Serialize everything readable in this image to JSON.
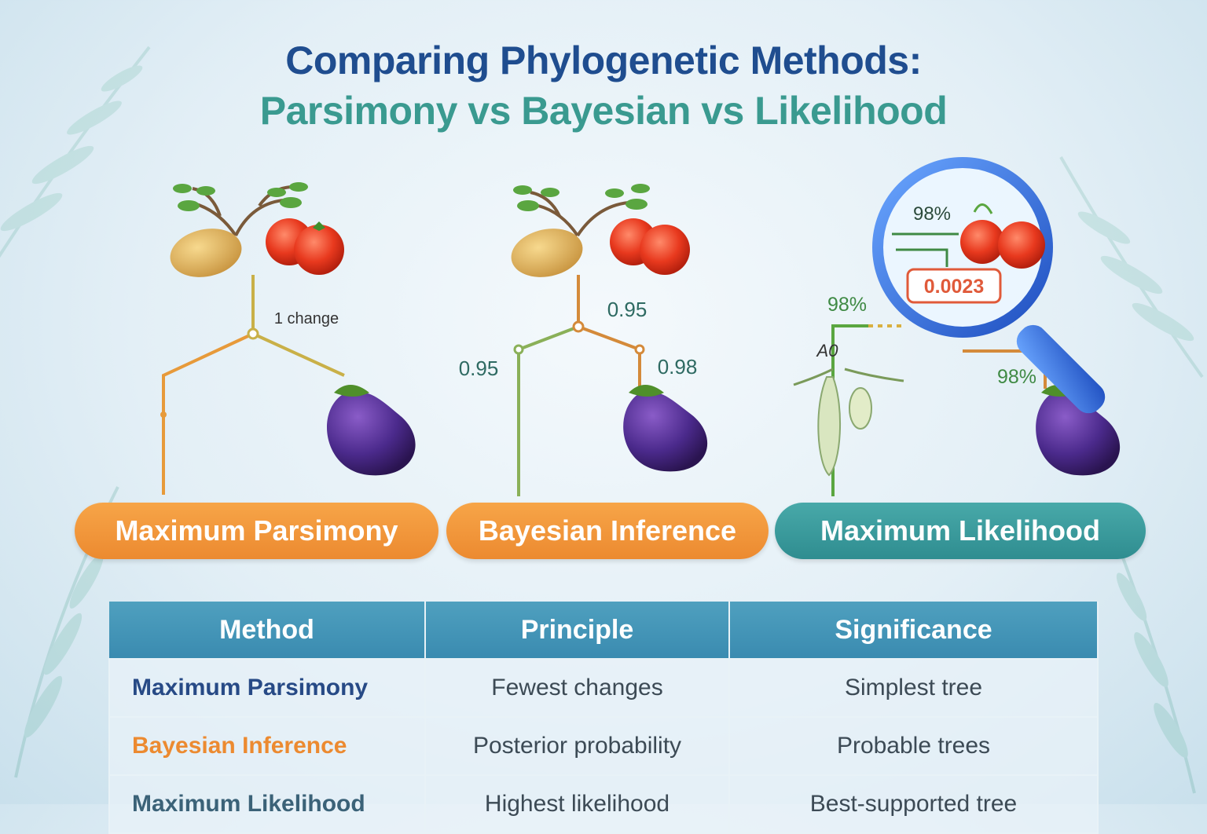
{
  "title": {
    "line1": "Comparing Phylogenetic Methods:",
    "line2": "Parsimony vs Bayesian vs Likelihood"
  },
  "panels": {
    "parsimony": {
      "label": "Maximum Parsimony",
      "change_label": "1 change"
    },
    "bayesian": {
      "label": "Bayesian Inference",
      "root": "0.95",
      "left": "0.95",
      "right": "0.98"
    },
    "likelihood": {
      "label": "Maximum Likelihood",
      "lens_percent": "98%",
      "likelihood_value": "0.0023",
      "left_percent": "98%",
      "right_percent": "98%",
      "node_mark": "A0"
    }
  },
  "table": {
    "headers": [
      "Method",
      "Principle",
      "Significance"
    ],
    "rows": [
      {
        "method": "Maximum Parsimony",
        "principle": "Fewest changes",
        "significance": "Simplest tree"
      },
      {
        "method": "Bayesian Inference",
        "principle": "Posterior probability",
        "significance": "Probable trees"
      },
      {
        "method": "Maximum Likelihood",
        "principle": "Highest likelihood",
        "significance": "Best-supported tree"
      }
    ]
  },
  "colors": {
    "orange": "#ec8a30",
    "teal": "#2f8d90",
    "navy": "#1f4d8f",
    "green_text": "#3a9a90"
  },
  "icons": [
    "potato-icon",
    "tomato-icon",
    "eggplant-icon",
    "plant-sprig-icon",
    "magnifier-icon",
    "fern-leaf-icon"
  ]
}
